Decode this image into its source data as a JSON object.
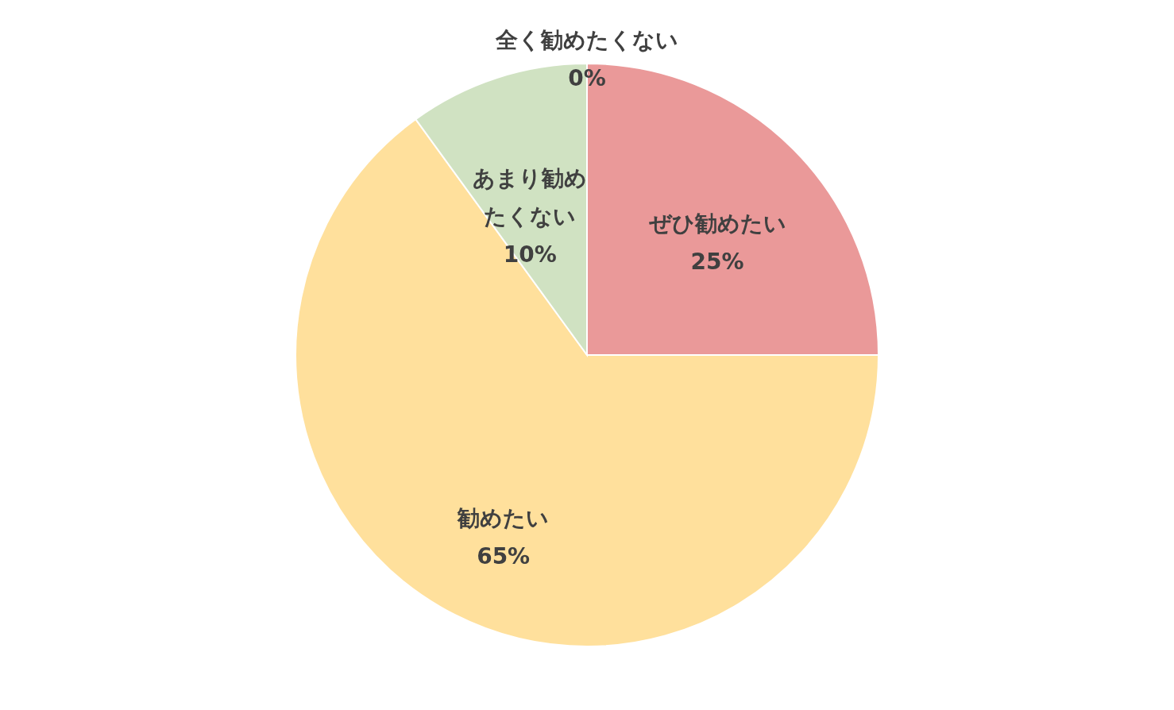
{
  "chart_data": {
    "type": "pie",
    "categories": [
      "ぜひ勧めたい",
      "勧めたい",
      "あまり勧めたくない",
      "全く勧めたくない"
    ],
    "values": [
      25,
      65,
      10,
      0
    ],
    "colors": [
      "#ea9999",
      "#ffe09c",
      "#d0e2c2",
      "#bfbfbf"
    ],
    "value_labels": [
      "25%",
      "65%",
      "10%",
      "0%"
    ]
  }
}
